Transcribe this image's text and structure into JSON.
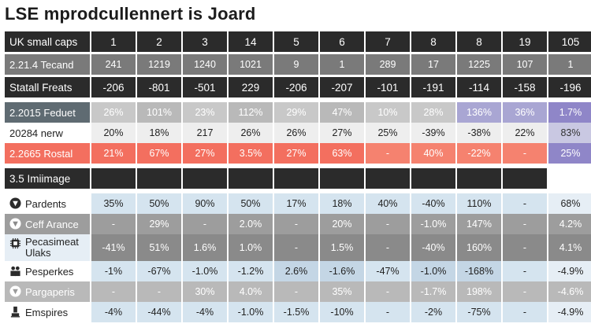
{
  "title": "LSE mprodcullennert is Joard",
  "header": {
    "label": "UK small caps",
    "cols": [
      "1",
      "2",
      "3",
      "14",
      "5",
      "6",
      "7",
      "8",
      "8",
      "19",
      "105"
    ]
  },
  "rows": {
    "r1": {
      "label": "2.21.4 Tecand",
      "values": [
        "241",
        "1219",
        "1240",
        "1021",
        "9",
        "1",
        "289",
        "17",
        "1225",
        "107",
        "1"
      ]
    },
    "r2": {
      "label": "Statall Freats",
      "values": [
        "-206",
        "-801",
        "-501",
        "229",
        "-206",
        "-207",
        "-101",
        "-191",
        "-114",
        "-158",
        "-196"
      ]
    },
    "r3": {
      "label": "2.2015 Feduet",
      "values": [
        "26%",
        "101%",
        "23%",
        "112%",
        "29%",
        "47%",
        "10%",
        "28%",
        "136%",
        "36%",
        "1.7%"
      ]
    },
    "r4": {
      "label": "20284 nerw",
      "values": [
        "20%",
        "18%",
        "217",
        "26%",
        "26%",
        "27%",
        "25%",
        "-39%",
        "-38%",
        "22%",
        "83%"
      ]
    },
    "r5": {
      "label": "2.2665 Rostal",
      "values": [
        "21%",
        "67%",
        "27%",
        "3.5%",
        "27%",
        "63%",
        "-",
        "40%",
        "-22%",
        "-",
        "25%"
      ]
    }
  },
  "section2": {
    "label": "3.5 Imiimage"
  },
  "rows2": {
    "a": {
      "label": "Pardents",
      "icon": "shield-icon",
      "values": [
        "35%",
        "50%",
        "90%",
        "50%",
        "17%",
        "18%",
        "40%",
        "-40%",
        "110%",
        "-",
        "68%"
      ]
    },
    "b": {
      "label": "Ceff Arance",
      "icon": "shield-icon",
      "values": [
        "-",
        "29%",
        "-",
        "2.0%",
        "-",
        "20%",
        "-",
        "-1.0%",
        "147%",
        "-",
        "4.2%"
      ]
    },
    "c": {
      "label_line1": "Pecasimeat",
      "label_line2": "Ulaks",
      "icon": "chip-icon",
      "values": [
        "-41%",
        "51%",
        "1.6%",
        "1.0%",
        "-",
        "1.5%",
        "-",
        "-40%",
        "160%",
        "-",
        "4.1%"
      ]
    },
    "d": {
      "label": "Pesperkes",
      "icon": "people-icon",
      "values": [
        "-1%",
        "-67%",
        "-1.0%",
        "-1.2%",
        "2.6%",
        "-1.6%",
        "-47%",
        "-1.0%",
        "-168%",
        "-",
        "-4.9%"
      ]
    },
    "e": {
      "label": "Pargaperis",
      "icon": "shield-icon",
      "values": [
        "-",
        "-",
        "30%",
        "4.0%",
        "-",
        "35%",
        "-",
        "-1.7%",
        "198%",
        "-",
        "-4.6%"
      ]
    },
    "f": {
      "label": "Emspires",
      "icon": "person-icon",
      "values": [
        "-4%",
        "-44%",
        "-4%",
        "-1.0%",
        "-1.5%",
        "-10%",
        "-",
        "-2%",
        "-75%",
        "-",
        "-4.9%"
      ]
    }
  },
  "colors": {
    "red": "#f36f5f",
    "purple": "#8f86c8",
    "dark": "#2b2b2b",
    "blue_light": "#d5e4ef"
  }
}
